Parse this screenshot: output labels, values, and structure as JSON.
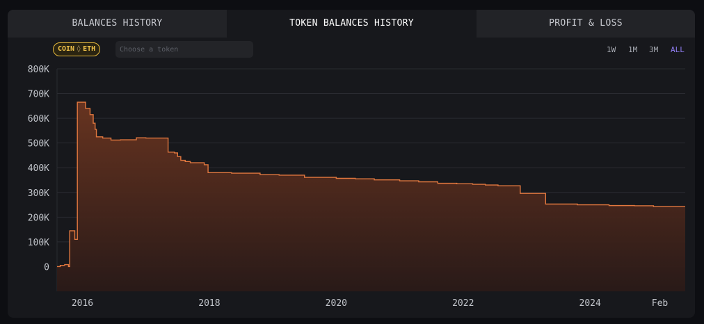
{
  "tabs": [
    {
      "label": "BALANCES HISTORY",
      "active": false
    },
    {
      "label": "TOKEN BALANCES HISTORY",
      "active": true
    },
    {
      "label": "PROFIT & LOSS",
      "active": false
    }
  ],
  "filter": {
    "coin_label": "COIN",
    "coin_icon": "eth-diamond-icon",
    "coin_symbol": "ETH",
    "token_placeholder": "Choose a token",
    "token_value": ""
  },
  "time_ranges": [
    {
      "label": "1W",
      "active": false
    },
    {
      "label": "1M",
      "active": false
    },
    {
      "label": "3M",
      "active": false
    },
    {
      "label": "ALL",
      "active": true
    }
  ],
  "colors": {
    "accent_line": "#e2783f",
    "fill_top": "#6b3520",
    "fill_bottom": "#2a1a18",
    "active_range": "#8e7cf0",
    "coin_badge": "#f0c24a"
  },
  "chart_data": {
    "type": "area",
    "title": "",
    "xlabel": "",
    "ylabel": "",
    "ylim": [
      -100000,
      800000
    ],
    "xlim": [
      2015.6,
      2025.5
    ],
    "y_ticks": [
      {
        "value": 800000,
        "label": "800K"
      },
      {
        "value": 700000,
        "label": "700K"
      },
      {
        "value": 600000,
        "label": "600K"
      },
      {
        "value": 500000,
        "label": "500K"
      },
      {
        "value": 400000,
        "label": "400K"
      },
      {
        "value": 300000,
        "label": "300K"
      },
      {
        "value": 200000,
        "label": "200K"
      },
      {
        "value": 100000,
        "label": "100K"
      },
      {
        "value": 0,
        "label": "0"
      }
    ],
    "x_ticks": [
      {
        "value": 2016,
        "label": "2016"
      },
      {
        "value": 2018,
        "label": "2018"
      },
      {
        "value": 2020,
        "label": "2020"
      },
      {
        "value": 2022,
        "label": "2022"
      },
      {
        "value": 2024,
        "label": "2024"
      },
      {
        "value": 2025.1,
        "label": "Feb"
      }
    ],
    "grid": true,
    "series": [
      {
        "step": true,
        "x": [
          2015.6,
          2015.65,
          2015.72,
          2015.78,
          2015.8,
          2015.88,
          2015.92,
          2016.0,
          2016.05,
          2016.12,
          2016.17,
          2016.2,
          2016.22,
          2016.32,
          2016.45,
          2016.6,
          2016.85,
          2017.0,
          2017.2,
          2017.35,
          2017.45,
          2017.5,
          2017.55,
          2017.62,
          2017.7,
          2017.92,
          2017.98,
          2018.35,
          2018.8,
          2019.1,
          2019.5,
          2020.0,
          2020.3,
          2020.6,
          2021.0,
          2021.3,
          2021.6,
          2021.9,
          2022.15,
          2022.35,
          2022.55,
          2022.9,
          2023.3,
          2023.8,
          2024.3,
          2024.7,
          2025.0,
          2025.5
        ],
        "values": [
          0,
          5000,
          8000,
          0,
          145000,
          110000,
          665000,
          665000,
          640000,
          615000,
          580000,
          555000,
          525000,
          520000,
          512000,
          513000,
          521000,
          520000,
          520000,
          463000,
          460000,
          445000,
          430000,
          425000,
          420000,
          412000,
          380000,
          378000,
          372000,
          370000,
          361000,
          357000,
          355000,
          351000,
          347000,
          343000,
          337000,
          335000,
          333000,
          330000,
          327000,
          296000,
          253000,
          250000,
          247000,
          246000,
          243000,
          243000
        ]
      }
    ]
  }
}
